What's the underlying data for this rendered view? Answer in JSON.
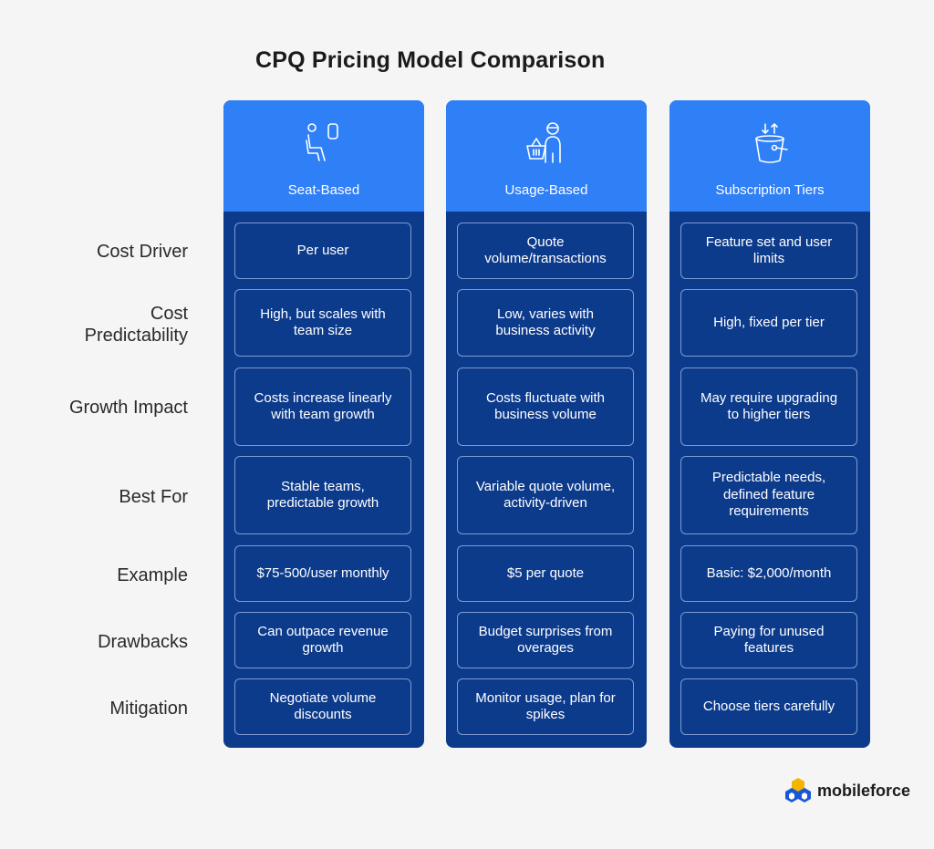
{
  "title": "CPQ Pricing Model Comparison",
  "row_labels": [
    "Cost Driver",
    "Cost Predictability",
    "Growth Impact",
    "Best For",
    "Example",
    "Drawbacks",
    "Mitigation"
  ],
  "columns": [
    {
      "title": "Seat-Based",
      "icon": "seated-person-icon",
      "cells": [
        "Per user",
        "High, but scales with team size",
        "Costs increase linearly with team growth",
        "Stable teams, predictable growth",
        "$75-500/user monthly",
        "Can outpace revenue growth",
        "Negotiate volume discounts"
      ]
    },
    {
      "title": "Usage-Based",
      "icon": "shopper-basket-icon",
      "cells": [
        "Quote volume/transactions",
        "Low, varies with business activity",
        "Costs fluctuate with business volume",
        "Variable quote volume, activity-driven",
        "$5 per quote",
        "Budget surprises from overages",
        "Monitor usage, plan for spikes"
      ]
    },
    {
      "title": "Subscription Tiers",
      "icon": "bucket-arrows-icon",
      "cells": [
        "Feature set and user limits",
        "High, fixed per tier",
        "May require upgrading to higher tiers",
        "Predictable needs, defined feature requirements",
        "Basic: $2,000/month",
        "Paying for unused features",
        "Choose tiers carefully"
      ]
    }
  ],
  "brand": {
    "name": "mobileforce",
    "icon": "mobileforce-logo-icon"
  },
  "colors": {
    "header_blue": "#2f7ff7",
    "body_navy": "#0d3b8c",
    "cell_border": "#7e9bd0"
  }
}
